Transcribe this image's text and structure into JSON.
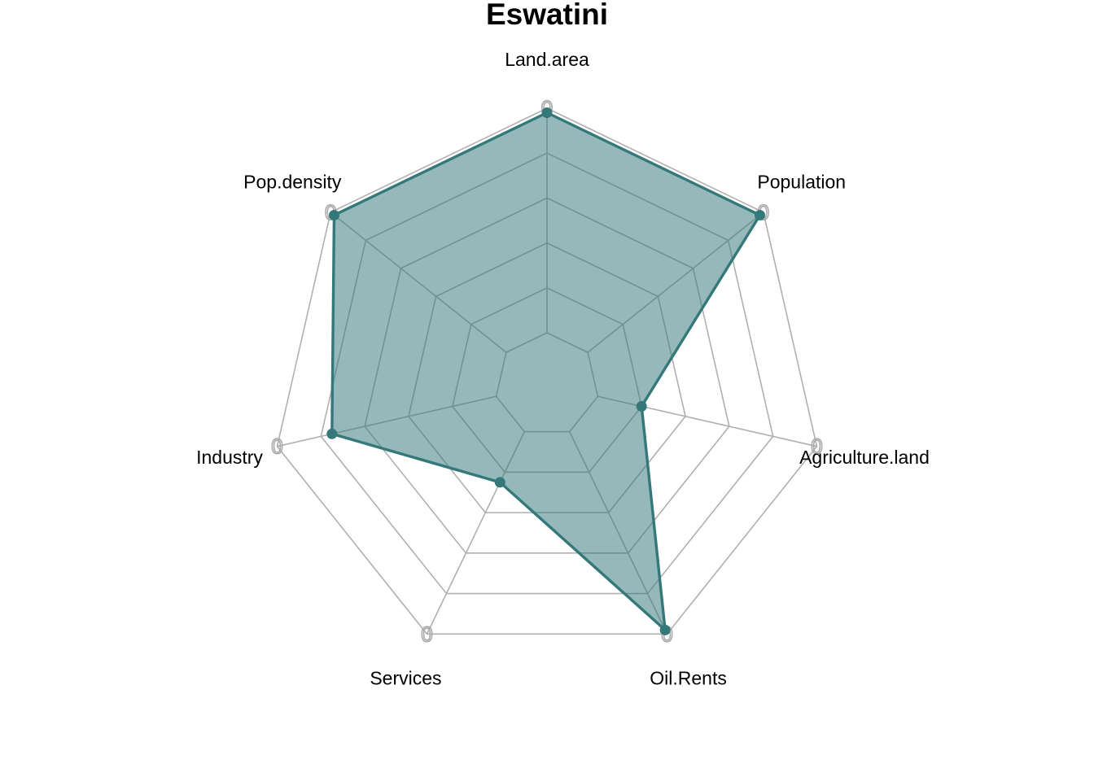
{
  "chart_data": {
    "type": "radar",
    "title": "Eswatini",
    "axes": [
      "Land.area",
      "Population",
      "Agriculture.land",
      "Oil.Rents",
      "Services",
      "Industry",
      "Pop.density"
    ],
    "series": [
      {
        "values": [
          0.98,
          0.98,
          0.2,
          0.98,
          0.25,
          0.75,
          0.98
        ]
      }
    ],
    "scale_min": 0,
    "scale_max": 1,
    "grid_levels": 5,
    "axis_tick_label": "0",
    "grid": true,
    "legend": "none",
    "colors": {
      "series_line": "#34787a",
      "series_fill": "#34787a",
      "series_fill_opacity": 0.52,
      "grid": "#b0b0b0",
      "tick_label": "#aaaaaa"
    }
  }
}
